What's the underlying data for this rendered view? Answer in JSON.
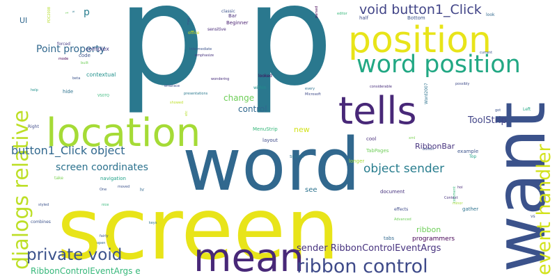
{
  "words": [
    {
      "text": "p",
      "color": "#2a788e"
    },
    {
      "text": "p",
      "color": "#2a788e"
    },
    {
      "text": "screen",
      "color": "#e8e419"
    },
    {
      "text": "word",
      "color": "#31688e"
    },
    {
      "text": "want",
      "color": "#3b528b"
    },
    {
      "text": "location",
      "color": "#a5db36"
    },
    {
      "text": "position",
      "color": "#e8e419"
    },
    {
      "text": "tells",
      "color": "#482878"
    },
    {
      "text": "mean",
      "color": "#482878"
    },
    {
      "text": "word position",
      "color": "#22a884"
    },
    {
      "text": "dialogs relative",
      "color": "#bddf26"
    },
    {
      "text": "event handler",
      "color": "#d2e21b"
    },
    {
      "text": "ribbon control",
      "color": "#3e4a89"
    },
    {
      "text": "private void",
      "color": "#3b528b"
    },
    {
      "text": "void button1_Click",
      "color": "#414487"
    },
    {
      "text": "object sender",
      "color": "#287d8e"
    },
    {
      "text": "button1_Click object",
      "color": "#31688e"
    },
    {
      "text": "screen coordinates",
      "color": "#2c728e"
    },
    {
      "text": "Point property",
      "color": "#31688e"
    },
    {
      "text": "sender RibbonControlEventArgs",
      "color": "#46327e"
    },
    {
      "text": "RibbonControlEventArgs e",
      "color": "#35b779"
    },
    {
      "text": "ToolStrip",
      "color": "#414487"
    },
    {
      "text": "change",
      "color": "#6ece58"
    },
    {
      "text": "control",
      "color": "#31688e"
    },
    {
      "text": "RibbonBar",
      "color": "#46327e"
    },
    {
      "text": "new",
      "color": "#d2e21b"
    },
    {
      "text": "ribbon",
      "color": "#6ece58"
    },
    {
      "text": "programmers",
      "color": "#440154"
    },
    {
      "text": "p",
      "color": "#287d8e"
    },
    {
      "text": "UI",
      "color": "#31688e"
    },
    {
      "text": "see",
      "color": "#2c728e"
    },
    {
      "text": "contextual",
      "color": "#21918c"
    },
    {
      "text": "complex",
      "color": "#443983"
    },
    {
      "text": "MenuStrip",
      "color": "#35b779"
    },
    {
      "text": "navigation",
      "color": "#1fa187"
    },
    {
      "text": "TabPages",
      "color": "#6ece58"
    },
    {
      "text": "cool",
      "color": "#472d7b"
    },
    {
      "text": "document",
      "color": "#46327e"
    },
    {
      "text": "example",
      "color": "#3b528b"
    },
    {
      "text": "layout",
      "color": "#3e4a89"
    },
    {
      "text": "space",
      "color": "#2c728e"
    },
    {
      "text": "longer",
      "color": "#a5db36"
    },
    {
      "text": "tabs",
      "color": "#31688e"
    },
    {
      "text": "half",
      "color": "#3e4a89"
    },
    {
      "text": "Bottom",
      "color": "#3b528b"
    },
    {
      "text": "Bar",
      "color": "#472d7b"
    },
    {
      "text": "Beginner",
      "color": "#481f70"
    },
    {
      "text": "classic",
      "color": "#3b528b"
    },
    {
      "text": "Intermediate",
      "color": "#3b528b"
    },
    {
      "text": "emphasize",
      "color": "#46327e"
    },
    {
      "text": "code",
      "color": "#3b528b"
    },
    {
      "text": "forced",
      "color": "#443983"
    },
    {
      "text": "mode",
      "color": "#440154"
    },
    {
      "text": "built",
      "color": "#6ece58"
    },
    {
      "text": "beta",
      "color": "#3b528b"
    },
    {
      "text": "hide",
      "color": "#2c728e"
    },
    {
      "text": "help",
      "color": "#21918c"
    },
    {
      "text": "VS07Q",
      "color": "#35b779"
    },
    {
      "text": "embrace",
      "color": "#3e4a89"
    },
    {
      "text": "showed",
      "color": "#bddf26"
    },
    {
      "text": "presentations",
      "color": "#2a788e"
    },
    {
      "text": "wondering",
      "color": "#472d7b"
    },
    {
      "text": "looked",
      "color": "#440154"
    },
    {
      "text": "within",
      "color": "#21918c"
    },
    {
      "text": "every",
      "color": "#2c728e"
    },
    {
      "text": "Microsoft",
      "color": "#3e4a89"
    },
    {
      "text": "considerable",
      "color": "#472d7b"
    },
    {
      "text": "possibly",
      "color": "#3e4a89"
    },
    {
      "text": "Word2007",
      "color": "#2c728e"
    },
    {
      "text": "Right",
      "color": "#3e4a89"
    },
    {
      "text": "Left",
      "color": "#22a884"
    },
    {
      "text": "got",
      "color": "#3b528b"
    },
    {
      "text": "xml",
      "color": "#7ad151"
    },
    {
      "text": "button",
      "color": "#3b528b"
    },
    {
      "text": "Top",
      "color": "#1fa187"
    },
    {
      "text": "hoi",
      "color": "#482878"
    },
    {
      "text": "comment",
      "color": "#35b779"
    },
    {
      "text": "minor",
      "color": "#a5db36"
    },
    {
      "text": "gather",
      "color": "#2c728e"
    },
    {
      "text": "Context",
      "color": "#46327e"
    },
    {
      "text": "effects",
      "color": "#3e4a89"
    },
    {
      "text": "Advanced",
      "color": "#6ece58"
    },
    {
      "text": "vs",
      "color": "#3b528b"
    },
    {
      "text": "current",
      "color": "#3b528b"
    },
    {
      "text": "look",
      "color": "#31688e"
    },
    {
      "text": "editor",
      "color": "#35b779"
    },
    {
      "text": "parsed",
      "color": "#440154"
    },
    {
      "text": "may",
      "color": "#3b528b"
    },
    {
      "text": "office",
      "color": "#d2e21b"
    },
    {
      "text": "sensitive",
      "color": "#482878"
    },
    {
      "text": "etc",
      "color": "#b5de2b"
    },
    {
      "text": "take",
      "color": "#7ad151"
    },
    {
      "text": "One",
      "color": "#3b528b"
    },
    {
      "text": "moved",
      "color": "#3b528b"
    },
    {
      "text": "hr",
      "color": "#31688e"
    },
    {
      "text": "nice",
      "color": "#35b779"
    },
    {
      "text": "styled",
      "color": "#3b528b"
    },
    {
      "text": "combines",
      "color": "#3b528b"
    },
    {
      "text": "keys",
      "color": "#2c728e"
    },
    {
      "text": "fairly",
      "color": "#3b528b"
    },
    {
      "text": "open",
      "color": "#31688e"
    },
    {
      "text": "PDC2008",
      "color": "#b5de2b"
    },
    {
      "text": "1",
      "color": "#6ece58"
    },
    {
      "text": "s",
      "color": "#2a788e"
    }
  ]
}
